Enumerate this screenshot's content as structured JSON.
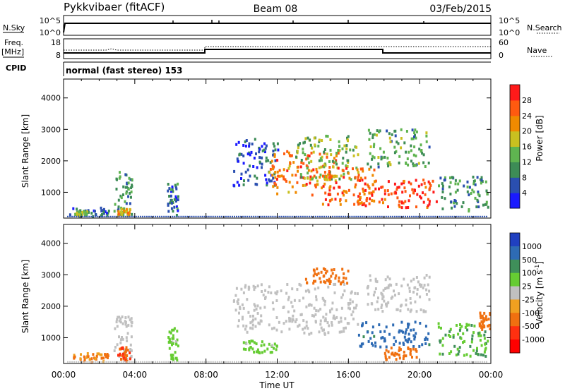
{
  "header": {
    "title": "Pykkvibaer (fitACF)",
    "beam": "Beam 08",
    "date": "03/Feb/2015"
  },
  "status_panels": {
    "nsky": {
      "label": "N.Sky",
      "ticks": [
        "10^5",
        "10^0"
      ],
      "right_label": "N.Search",
      "right_ticks": [
        "10^5",
        "10^0"
      ]
    },
    "freq": {
      "label_line1": "Freq.",
      "label_line2": "[MHz]",
      "ticks": [
        "18",
        "8"
      ],
      "right_label": "Nave",
      "right_ticks": [
        "60",
        "0"
      ]
    },
    "cpid": {
      "label": "CPID",
      "value": "normal (fast stereo) 153"
    }
  },
  "time_axis": {
    "label": "Time UT",
    "ticks": [
      "00:00",
      "04:00",
      "08:00",
      "12:00",
      "16:00",
      "20:00",
      "00:00"
    ]
  },
  "power_colorbar": {
    "label": "Power [dB]",
    "ticks": [
      "4",
      "8",
      "12",
      "16",
      "20",
      "24",
      "28"
    ],
    "colors": [
      "#1a1aff",
      "#2a4fb0",
      "#3d8c56",
      "#5fb450",
      "#c9c020",
      "#f08a00",
      "#ff5a10",
      "#ff1a1a"
    ]
  },
  "velocity_colorbar": {
    "label": "Velocity [m s",
    "label_sup": "-1",
    "label_end": "]",
    "ticks": [
      "1000",
      "500",
      "100",
      "25",
      "-25",
      "-100",
      "-500",
      "-1000"
    ],
    "colors": [
      "#2040c0",
      "#2e6bb4",
      "#3f8f5a",
      "#66cc33",
      "#c0c0c0",
      "#f0a020",
      "#f07010",
      "#ff3010",
      "#ff0000"
    ]
  },
  "chart_data": [
    {
      "type": "heatmap",
      "panel": "power",
      "xlabel": "",
      "ylabel": "Slant Range [km]",
      "xlim": [
        0,
        24
      ],
      "ylim": [
        180,
        4600
      ],
      "yticks": [
        1000,
        2000,
        3000,
        4000
      ],
      "colorbar_range": [
        0,
        32
      ],
      "blobs": [
        {
          "t0": 0.3,
          "t1": 2.5,
          "r0": 200,
          "r1": 500,
          "v": 8
        },
        {
          "t0": 0.6,
          "t1": 1.4,
          "r0": 250,
          "r1": 420,
          "v": 14
        },
        {
          "t0": 2.8,
          "t1": 3.8,
          "r0": 250,
          "r1": 1700,
          "v": 10
        },
        {
          "t0": 3.0,
          "t1": 3.7,
          "r0": 250,
          "r1": 500,
          "v": 20
        },
        {
          "t0": 5.8,
          "t1": 6.4,
          "r0": 250,
          "r1": 1300,
          "v": 8
        },
        {
          "t0": 9.5,
          "t1": 12.0,
          "r0": 1200,
          "r1": 2700,
          "v": 6
        },
        {
          "t0": 11.5,
          "t1": 15.5,
          "r0": 900,
          "r1": 2300,
          "v": 24
        },
        {
          "t0": 13.0,
          "t1": 16.5,
          "r0": 1400,
          "r1": 2800,
          "v": 14
        },
        {
          "t0": 14.5,
          "t1": 17.5,
          "r0": 600,
          "r1": 1800,
          "v": 26
        },
        {
          "t0": 16.5,
          "t1": 21.0,
          "r0": 500,
          "r1": 1400,
          "v": 28
        },
        {
          "t0": 17.0,
          "t1": 20.5,
          "r0": 1800,
          "r1": 3000,
          "v": 12
        },
        {
          "t0": 21.0,
          "t1": 23.8,
          "r0": 400,
          "r1": 1500,
          "v": 10
        }
      ]
    },
    {
      "type": "heatmap",
      "panel": "velocity",
      "xlabel": "Time UT",
      "ylabel": "Slant Range [km]",
      "xlim": [
        0,
        24
      ],
      "ylim": [
        180,
        4600
      ],
      "yticks": [
        1000,
        2000,
        3000,
        4000
      ],
      "blobs": [
        {
          "t0": 0.3,
          "t1": 2.5,
          "r0": 200,
          "r1": 500,
          "v": -100
        },
        {
          "t0": 2.8,
          "t1": 3.8,
          "r0": 250,
          "r1": 1700,
          "v": 0
        },
        {
          "t0": 3.0,
          "t1": 3.7,
          "r0": 250,
          "r1": 700,
          "v": -500
        },
        {
          "t0": 5.8,
          "t1": 6.4,
          "r0": 250,
          "r1": 1300,
          "v": 60
        },
        {
          "t0": 9.5,
          "t1": 16.5,
          "r0": 1100,
          "r1": 2700,
          "v": 0
        },
        {
          "t0": 13.5,
          "t1": 16.0,
          "r0": 2700,
          "r1": 3200,
          "v": -200
        },
        {
          "t0": 16.5,
          "t1": 20.5,
          "r0": 700,
          "r1": 1500,
          "v": 700
        },
        {
          "t0": 17.0,
          "t1": 20.5,
          "r0": 1800,
          "r1": 3000,
          "v": 0
        },
        {
          "t0": 18.0,
          "t1": 20.0,
          "r0": 300,
          "r1": 700,
          "v": -300
        },
        {
          "t0": 10.0,
          "t1": 12.0,
          "r0": 500,
          "r1": 900,
          "v": 60
        },
        {
          "t0": 21.0,
          "t1": 23.8,
          "r0": 400,
          "r1": 1500,
          "v": 80
        },
        {
          "t0": 23.3,
          "t1": 23.9,
          "r0": 1200,
          "r1": 1800,
          "v": -200
        }
      ]
    }
  ]
}
